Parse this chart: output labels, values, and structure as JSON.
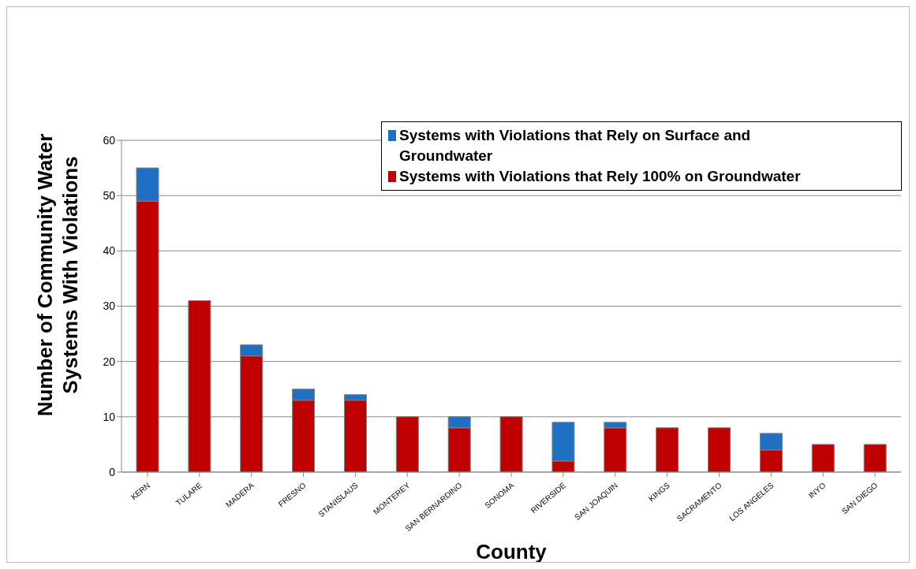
{
  "chart_data": {
    "type": "bar",
    "stacked": true,
    "xlabel": "County",
    "ylabel": "Number of Community Water Systems With Violations",
    "categories": [
      "KERN",
      "TULARE",
      "MADERA",
      "FRESNO",
      "STANISLAUS",
      "MONTEREY",
      "SAN BERNARDINO",
      "SONOMA",
      "RIVERSIDE",
      "SAN JOAQUIN",
      "KINGS",
      "SACRAMENTO",
      "LOS ANGELES",
      "INYO",
      "SAN DIEGO"
    ],
    "series": [
      {
        "name": "Systems with Violations that Rely 100% on Groundwater",
        "color": "#c00000",
        "values": [
          49,
          31,
          21,
          13,
          13,
          10,
          8,
          10,
          2,
          8,
          8,
          8,
          4,
          5,
          5
        ]
      },
      {
        "name": "Systems with Violations that Rely on Surface and Groundwater",
        "color": "#1f6fc5",
        "values": [
          6,
          0,
          2,
          2,
          1,
          0,
          2,
          0,
          7,
          1,
          0,
          0,
          3,
          0,
          0
        ]
      }
    ],
    "ylim": [
      0,
      60
    ],
    "yticks": [
      0,
      10,
      20,
      30,
      40,
      50,
      60
    ],
    "grid": "y",
    "legend": "top right"
  }
}
